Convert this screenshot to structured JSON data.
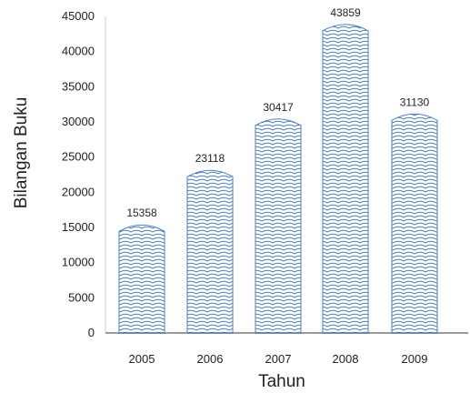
{
  "chart_data": {
    "type": "bar",
    "categories": [
      "2005",
      "2006",
      "2007",
      "2008",
      "2009"
    ],
    "values": [
      15358,
      23118,
      30417,
      43859,
      31130
    ],
    "xlabel": "Tahun",
    "ylabel": "Bilangan Buku",
    "ylim": [
      0,
      45000
    ],
    "yticks": [
      0,
      5000,
      10000,
      15000,
      20000,
      25000,
      30000,
      35000,
      40000,
      45000
    ],
    "grid": false,
    "bar_color": "#4a7fc6"
  }
}
